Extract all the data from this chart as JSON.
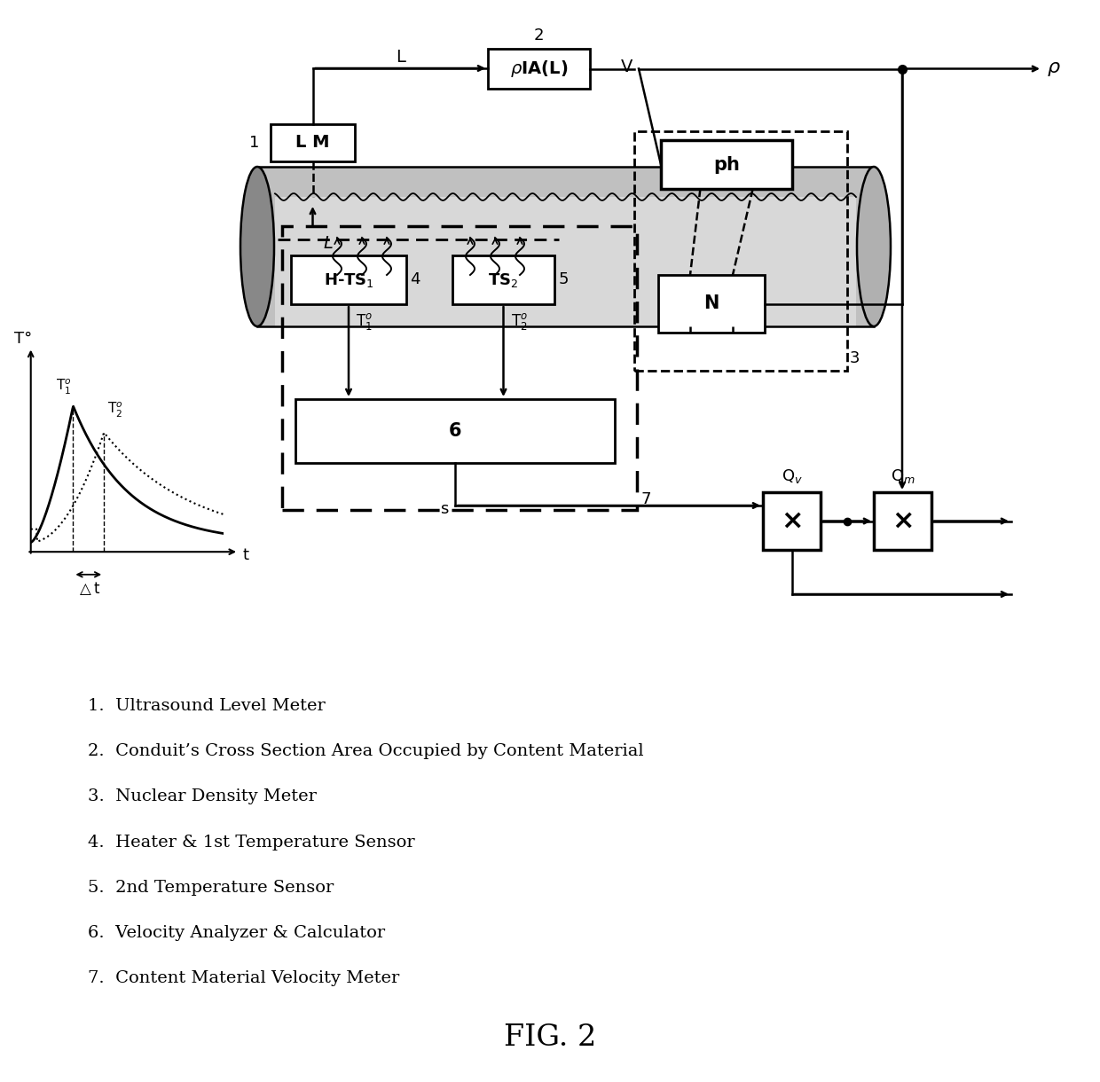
{
  "title": "FIG. 2",
  "legend_items": [
    "1.  Ultrasound Level Meter",
    "2.  Conduit’s Cross Section Area Occupied by Content Material",
    "3.  Nuclear Density Meter",
    "4.  Heater & 1st Temperature Sensor",
    "5.  2nd Temperature Sensor",
    "6.  Velocity Analyzer & Calculator",
    "7.  Content Material Velocity Meter"
  ],
  "bg_color": "#ffffff",
  "line_color": "#000000"
}
